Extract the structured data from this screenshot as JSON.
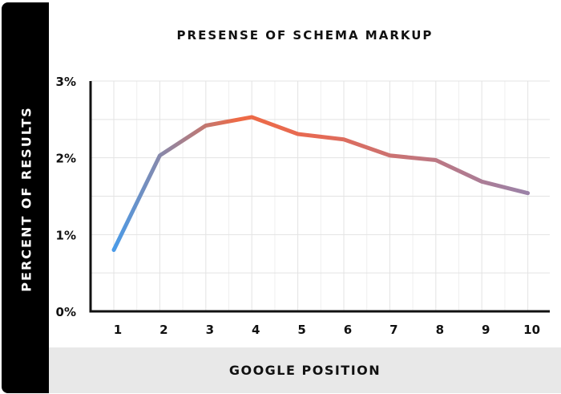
{
  "chart_data": {
    "type": "line",
    "title": "PRESENSE OF SCHEMA MARKUP",
    "xlabel": "GOOGLE POSITION",
    "ylabel": "PERCENT OF RESULTS",
    "x": [
      1,
      2,
      3,
      4,
      5,
      6,
      7,
      8,
      9,
      10
    ],
    "series": [
      {
        "values": [
          0.8,
          2.03,
          2.42,
          2.53,
          2.31,
          2.24,
          2.03,
          1.97,
          1.69,
          1.54
        ]
      }
    ],
    "ylim": [
      0,
      3
    ],
    "y_ticks": [
      "0%",
      "1%",
      "2%",
      "3%"
    ],
    "x_ticks": [
      "1",
      "2",
      "3",
      "4",
      "5",
      "6",
      "7",
      "8",
      "9",
      "10"
    ],
    "grid": true,
    "line_gradient": [
      "#4a9be8",
      "#ee6a45",
      "#9b82a8"
    ]
  }
}
